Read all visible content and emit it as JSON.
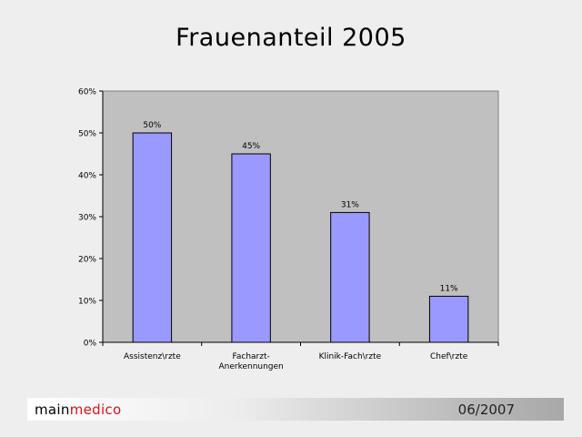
{
  "slide": {
    "title": "Frauenanteil 2005"
  },
  "chart_data": {
    "type": "bar",
    "title": "",
    "xlabel": "",
    "ylabel": "",
    "categories": [
      "Assistenz\\rzte",
      "Facharzt-\nAnerkennungen",
      "Klinik-Fach\\rzte",
      "Chef\\rzte"
    ],
    "values": [
      50,
      45,
      31,
      11
    ],
    "data_labels": [
      "50%",
      "45%",
      "31%",
      "11%"
    ],
    "ylim": [
      0,
      60
    ],
    "y_ticks": [
      0,
      10,
      20,
      30,
      40,
      50,
      60
    ],
    "y_tick_labels": [
      "0%",
      "10%",
      "20%",
      "30%",
      "40%",
      "50%",
      "60%"
    ],
    "grid": false,
    "legend": "none",
    "colors": {
      "plot_background": "#c0c0c0",
      "bar_fill": "#9999ff",
      "bar_stroke": "#000000"
    }
  },
  "footer": {
    "brand_part1": "main",
    "brand_part2": "medico",
    "brand_colors": [
      "#000000",
      "#e0101a"
    ],
    "date": "06/2007"
  }
}
